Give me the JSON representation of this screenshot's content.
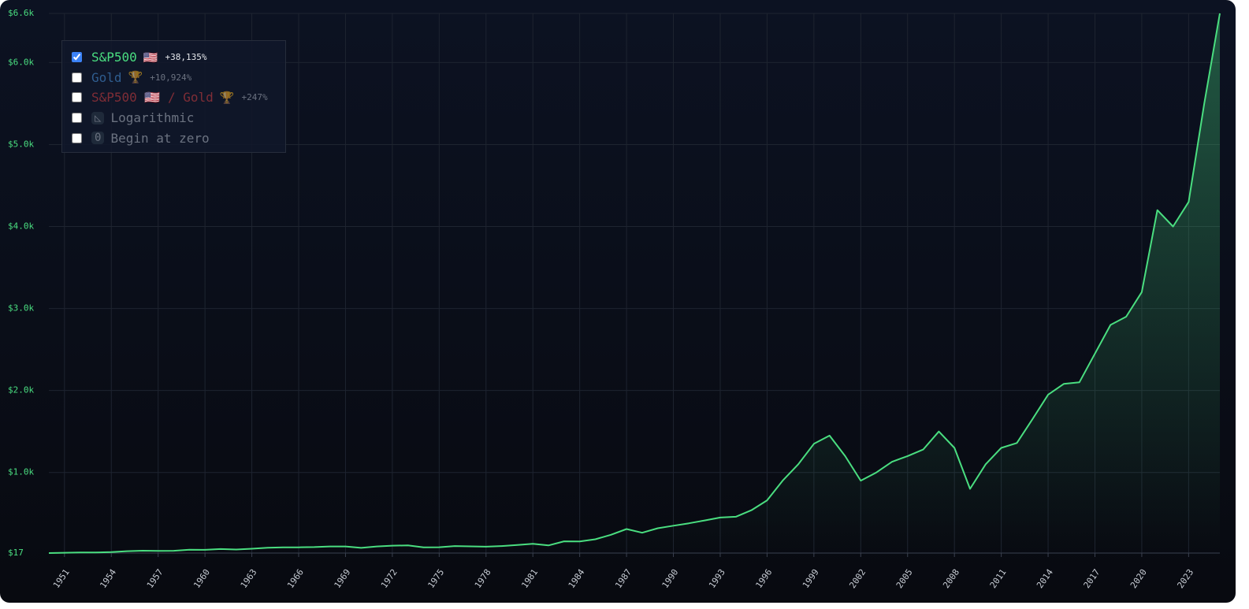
{
  "chart_data": {
    "type": "line",
    "x": [
      1950,
      1951,
      1952,
      1953,
      1954,
      1955,
      1956,
      1957,
      1958,
      1959,
      1960,
      1961,
      1962,
      1963,
      1964,
      1965,
      1966,
      1967,
      1968,
      1969,
      1970,
      1971,
      1972,
      1973,
      1974,
      1975,
      1976,
      1977,
      1978,
      1979,
      1980,
      1981,
      1982,
      1983,
      1984,
      1985,
      1986,
      1987,
      1988,
      1989,
      1990,
      1991,
      1992,
      1993,
      1994,
      1995,
      1996,
      1997,
      1998,
      1999,
      2000,
      2001,
      2002,
      2003,
      2004,
      2005,
      2006,
      2007,
      2008,
      2009,
      2010,
      2011,
      2012,
      2013,
      2014,
      2015,
      2016,
      2017,
      2018,
      2019,
      2020,
      2021,
      2022,
      2023,
      2024,
      2025
    ],
    "series": [
      {
        "name": "S&P500",
        "icon": "🇺🇸",
        "change": "+38,135%",
        "color": "#4ade80",
        "visible": true,
        "values": [
          17,
          21,
          24,
          24,
          29,
          40,
          46,
          44,
          45,
          58,
          56,
          66,
          60,
          70,
          81,
          86,
          87,
          90,
          98,
          98,
          80,
          98,
          107,
          110,
          87,
          88,
          103,
          99,
          95,
          103,
          115,
          130,
          110,
          160,
          158,
          185,
          240,
          310,
          265,
          320,
          350,
          380,
          415,
          450,
          460,
          540,
          660,
          900,
          1100,
          1350,
          1450,
          1200,
          900,
          1000,
          1130,
          1200,
          1280,
          1500,
          1300,
          800,
          1100,
          1300,
          1360,
          1650,
          1950,
          2080,
          2100,
          2450,
          2800,
          2900,
          3200,
          4200,
          4000,
          4300,
          5500,
          6600
        ]
      },
      {
        "name": "Gold",
        "icon": "🏆",
        "change": "+10,924%",
        "color": "#2f5d8f",
        "visible": false
      },
      {
        "name": "S&P500 🇺🇸 / Gold",
        "icon": "🏆",
        "change": "+247%",
        "color": "#7f2d36",
        "visible": false
      }
    ],
    "options": [
      {
        "label": "Logarithmic",
        "icon": "◺"
      },
      {
        "label": "Begin at zero",
        "icon": "0"
      }
    ],
    "log_scale": false,
    "begin_at_zero": false,
    "grid": true,
    "xlim": [
      1950,
      2025
    ],
    "xticks": [
      1951,
      1954,
      1957,
      1960,
      1963,
      1966,
      1969,
      1972,
      1975,
      1978,
      1981,
      1984,
      1987,
      1990,
      1993,
      1996,
      1999,
      2002,
      2005,
      2008,
      2011,
      2014,
      2017,
      2020,
      2023
    ],
    "ylim": [
      17,
      6600
    ],
    "yticks": [
      {
        "value": 17,
        "label": "$17"
      },
      {
        "value": 1000,
        "label": "$1.0k"
      },
      {
        "value": 2000,
        "label": "$2.0k"
      },
      {
        "value": 3000,
        "label": "$3.0k"
      },
      {
        "value": 4000,
        "label": "$4.0k"
      },
      {
        "value": 5000,
        "label": "$5.0k"
      },
      {
        "value": 6000,
        "label": "$6.0k"
      },
      {
        "value": 6600,
        "label": "$6.6k"
      }
    ]
  }
}
